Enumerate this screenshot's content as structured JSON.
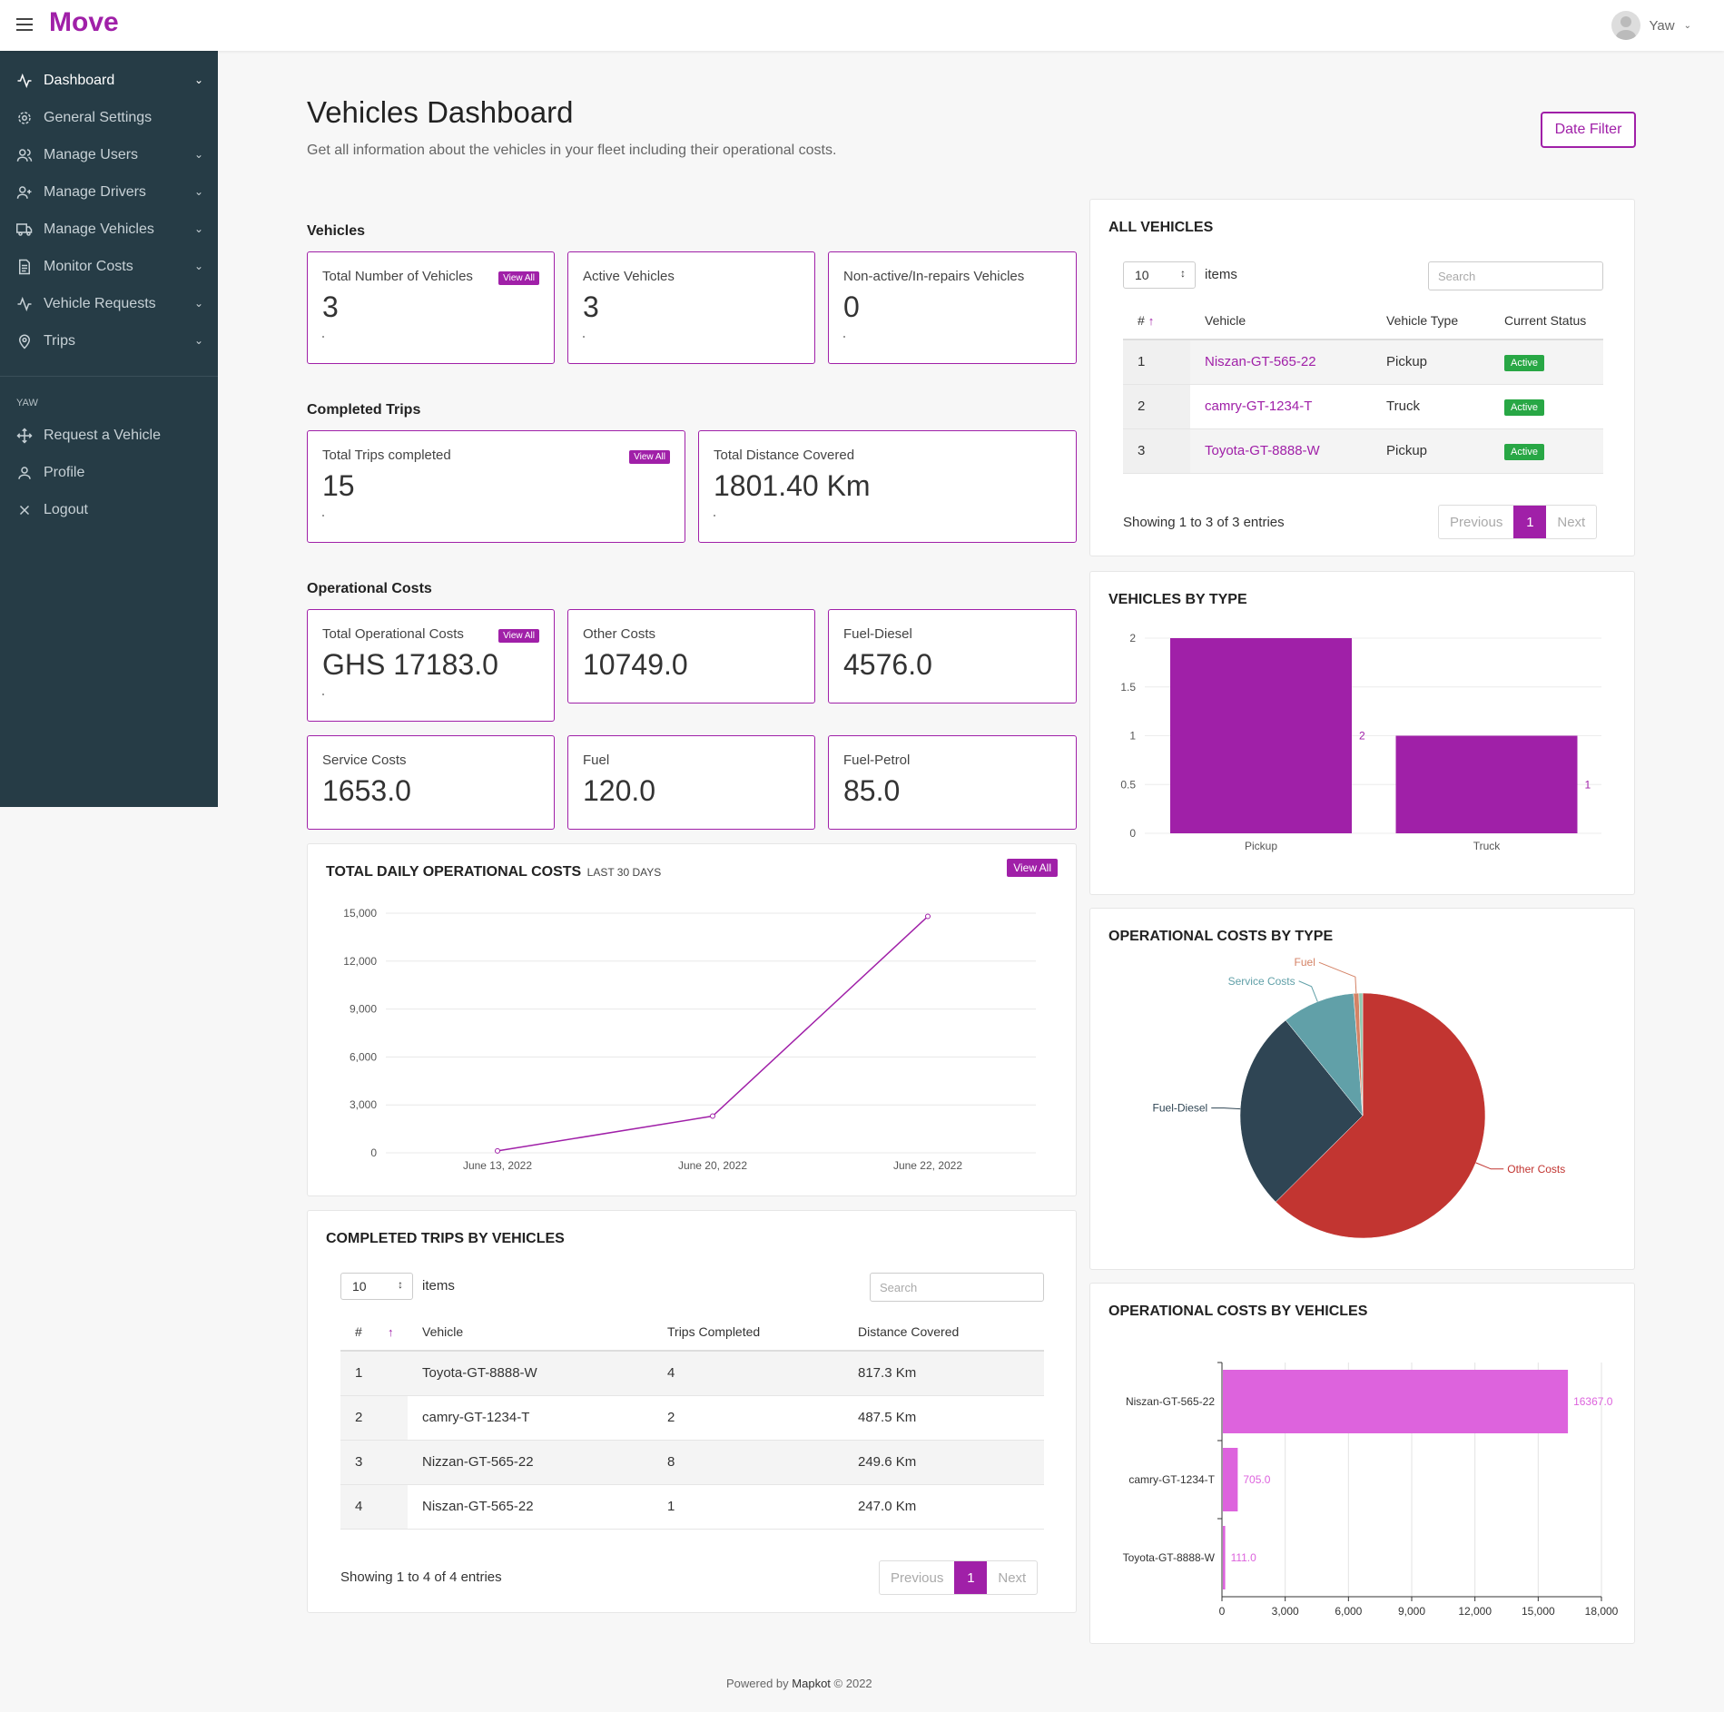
{
  "app": {
    "brand": "Move",
    "user_name": "Yaw"
  },
  "sidebar": {
    "items": [
      {
        "label": "Dashboard",
        "icon": "activity-icon"
      },
      {
        "label": "General Settings",
        "icon": "gear-icon"
      },
      {
        "label": "Manage Users",
        "icon": "users-icon"
      },
      {
        "label": "Manage Drivers",
        "icon": "user-plus-icon"
      },
      {
        "label": "Manage Vehicles",
        "icon": "truck-icon"
      },
      {
        "label": "Monitor Costs",
        "icon": "file-text-icon"
      },
      {
        "label": "Vehicle Requests",
        "icon": "activity-icon"
      },
      {
        "label": "Trips",
        "icon": "map-pin-icon"
      }
    ],
    "section_header": "YAW",
    "extra_items": [
      {
        "label": "Request a Vehicle",
        "icon": "move-icon"
      },
      {
        "label": "Profile",
        "icon": "user-icon"
      },
      {
        "label": "Logout",
        "icon": "close-icon"
      }
    ]
  },
  "header": {
    "title": "Vehicles Dashboard",
    "subtitle": "Get all information about the vehicles in your fleet including their operational costs.",
    "date_filter": "Date Filter"
  },
  "sections": {
    "vehicles": "Vehicles",
    "trips": "Completed Trips",
    "costs": "Operational Costs"
  },
  "view_all": "View All",
  "stats": {
    "total_vehicles": {
      "label": "Total Number of Vehicles",
      "value": "3"
    },
    "active_vehicles": {
      "label": "Active Vehicles",
      "value": "3"
    },
    "nonactive_vehicles": {
      "label": "Non-active/In-repairs Vehicles",
      "value": "0"
    },
    "trips_completed": {
      "label": "Total Trips completed",
      "value": "15"
    },
    "distance": {
      "label": "Total Distance Covered",
      "value": "1801.40 Km"
    },
    "total_costs": {
      "label": "Total Operational Costs",
      "value": "GHS 17183.0"
    },
    "other_costs": {
      "label": "Other Costs",
      "value": "10749.0"
    },
    "fuel_diesel": {
      "label": "Fuel-Diesel",
      "value": "4576.0"
    },
    "service_costs": {
      "label": "Service Costs",
      "value": "1653.0"
    },
    "fuel": {
      "label": "Fuel",
      "value": "120.0"
    },
    "fuel_petrol": {
      "label": "Fuel-Petrol",
      "value": "85.0"
    }
  },
  "all_vehicles": {
    "title": "ALL VEHICLES",
    "page_size": "10",
    "items_label": "items",
    "search_placeholder": "Search",
    "columns": [
      "#",
      "Vehicle",
      "Vehicle Type",
      "Current Status"
    ],
    "rows": [
      {
        "n": "1",
        "vehicle": "Niszan-GT-565-22",
        "type": "Pickup",
        "status": "Active"
      },
      {
        "n": "2",
        "vehicle": "camry-GT-1234-T",
        "type": "Truck",
        "status": "Active"
      },
      {
        "n": "3",
        "vehicle": "Toyota-GT-8888-W",
        "type": "Pickup",
        "status": "Active"
      }
    ],
    "info": "Showing 1 to 3 of 3 entries",
    "prev": "Previous",
    "page": "1",
    "next": "Next"
  },
  "trips_table": {
    "title": "COMPLETED TRIPS BY VEHICLES",
    "page_size": "10",
    "items_label": "items",
    "search_placeholder": "Search",
    "columns": [
      "#",
      "Vehicle",
      "Trips Completed",
      "Distance Covered"
    ],
    "rows": [
      {
        "n": "1",
        "vehicle": "Toyota-GT-8888-W",
        "trips": "4",
        "distance": "817.3 Km"
      },
      {
        "n": "2",
        "vehicle": "camry-GT-1234-T",
        "trips": "2",
        "distance": "487.5 Km"
      },
      {
        "n": "3",
        "vehicle": "Nizzan-GT-565-22",
        "trips": "8",
        "distance": "249.6 Km"
      },
      {
        "n": "4",
        "vehicle": "Niszan-GT-565-22",
        "trips": "1",
        "distance": "247.0 Km"
      }
    ],
    "info": "Showing 1 to 4 of 4 entries",
    "prev": "Previous",
    "page": "1",
    "next": "Next"
  },
  "chart_data": [
    {
      "id": "daily-costs",
      "type": "line",
      "title": "TOTAL DAILY OPERATIONAL COSTS",
      "subtitle": "LAST 30 DAYS",
      "categories": [
        "June 13, 2022",
        "June 20, 2022",
        "June 22, 2022"
      ],
      "values": [
        120,
        2300,
        14800
      ],
      "ylim": [
        0,
        15000
      ],
      "yticks": [
        "0",
        "3,000",
        "6,000",
        "9,000",
        "12,000",
        "15,000"
      ],
      "color": "#a020a8",
      "grid": true
    },
    {
      "id": "vehicles-by-type",
      "type": "bar",
      "title": "VEHICLES BY TYPE",
      "categories": [
        "Pickup",
        "Truck"
      ],
      "values": [
        2,
        1
      ],
      "value_labels": [
        "2",
        "1"
      ],
      "ylim": [
        0,
        2
      ],
      "yticks": [
        "0",
        "0.5",
        "1",
        "1.5",
        "2"
      ],
      "color": "#a020a8",
      "grid": true
    },
    {
      "id": "costs-by-type",
      "type": "pie",
      "title": "OPERATIONAL COSTS BY TYPE",
      "labels": [
        "Other Costs",
        "Fuel-Diesel",
        "Service Costs",
        "Fuel",
        "Fuel-Petrol"
      ],
      "values": [
        10749,
        4576,
        1653,
        120,
        85
      ],
      "colors": [
        "#c23531",
        "#2f4554",
        "#61a0a8",
        "#d48265",
        "#91c7ae"
      ],
      "label_colors": [
        "#c23531",
        "#2f4554",
        "#61a0a8",
        "#d48265",
        "#91c7ae"
      ],
      "labels_shown": [
        "Other Costs",
        "Fuel-Diesel",
        "Service Costs",
        "Fuel",
        ""
      ]
    },
    {
      "id": "costs-by-vehicle",
      "type": "bar",
      "orientation": "horizontal",
      "title": "OPERATIONAL COSTS BY VEHICLES",
      "categories": [
        "Niszan-GT-565-22",
        "camry-GT-1234-T",
        "Toyota-GT-8888-W"
      ],
      "values": [
        16367,
        705,
        111
      ],
      "value_labels": [
        "16367.0",
        "705.0",
        "111.0"
      ],
      "xlim": [
        0,
        18000
      ],
      "xticks": [
        "0",
        "3,000",
        "6,000",
        "9,000",
        "12,000",
        "15,000",
        "18,000"
      ],
      "color": "#dd63dd",
      "grid": true
    }
  ],
  "footer": {
    "prefix": "Powered by",
    "brand": "Mapkot",
    "suffix": "© 2022"
  }
}
